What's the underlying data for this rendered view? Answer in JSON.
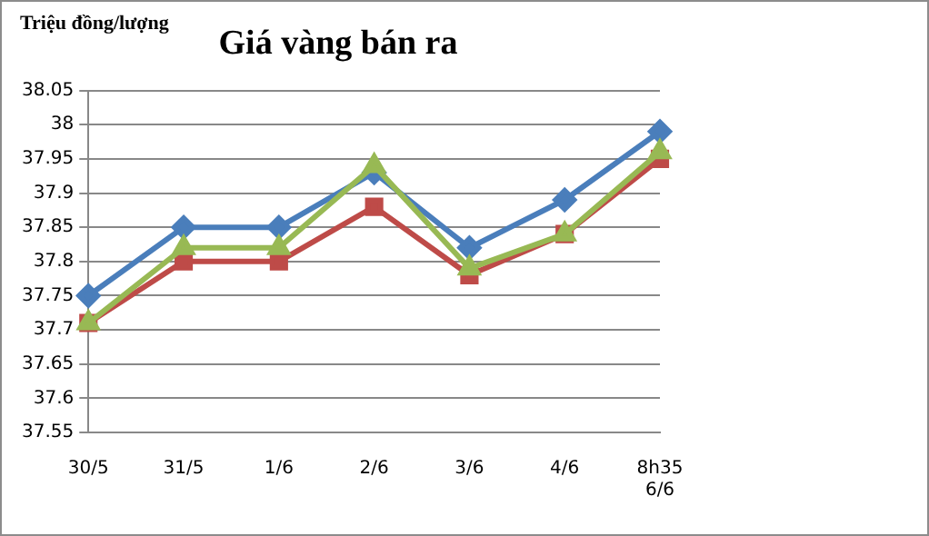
{
  "chart_data": {
    "type": "line",
    "title": "Giá vàng bán ra",
    "ylabel": "Triệu đồng/lượng",
    "categories": [
      "30/5",
      "31/5",
      "1/6",
      "2/6",
      "3/6",
      "4/6",
      "8h35 6/6"
    ],
    "series": [
      {
        "color": "#4a7ebb",
        "marker": "diamond",
        "values": [
          37.75,
          37.85,
          37.85,
          37.93,
          37.82,
          37.89,
          37.99
        ]
      },
      {
        "color": "#be4b48",
        "marker": "square",
        "values": [
          37.71,
          37.8,
          37.8,
          37.88,
          37.78,
          37.84,
          37.95
        ]
      },
      {
        "color": "#98b954",
        "marker": "triangle",
        "values": [
          37.71,
          37.82,
          37.82,
          37.94,
          37.79,
          37.84,
          37.96
        ]
      }
    ],
    "ylim": [
      37.55,
      38.05
    ],
    "yticks": [
      37.55,
      37.6,
      37.65,
      37.7,
      37.75,
      37.8,
      37.85,
      37.9,
      37.95,
      38,
      38.05
    ],
    "grid": "y",
    "legend": false
  }
}
